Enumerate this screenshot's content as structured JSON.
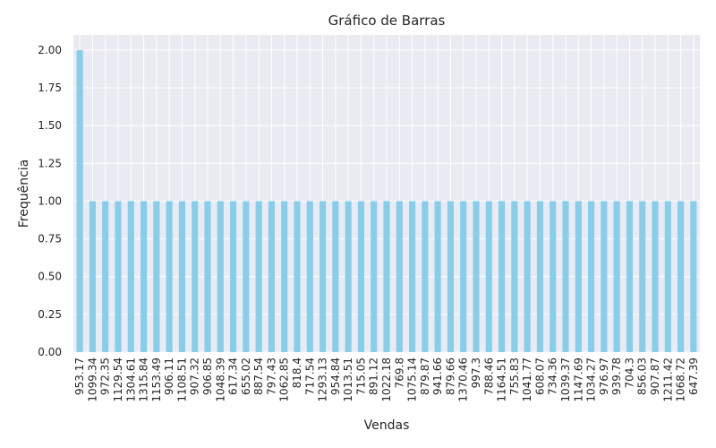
{
  "chart_data": {
    "type": "bar",
    "title": "Gráfico de Barras",
    "xlabel": "Vendas",
    "ylabel": "Frequência",
    "ylim": [
      0,
      2.1
    ],
    "yticks": [
      "0.00",
      "0.25",
      "0.50",
      "0.75",
      "1.00",
      "1.25",
      "1.50",
      "1.75",
      "2.00"
    ],
    "grid": true,
    "bar_color": "#87CEEB",
    "background_color": "#EAEAF2",
    "grid_color": "#FFFFFF",
    "categories": [
      "953.17",
      "1099.34",
      "972.35",
      "1129.54",
      "1304.61",
      "1315.84",
      "1153.49",
      "906.11",
      "1108.51",
      "907.32",
      "906.85",
      "1048.39",
      "617.34",
      "655.02",
      "887.54",
      "797.43",
      "1062.85",
      "818.4",
      "717.54",
      "1293.13",
      "954.84",
      "1013.51",
      "715.05",
      "891.12",
      "1022.18",
      "769.8",
      "1075.14",
      "879.87",
      "941.66",
      "879.66",
      "1370.46",
      "997.3",
      "788.46",
      "1164.51",
      "755.83",
      "1041.77",
      "608.07",
      "734.36",
      "1039.37",
      "1147.69",
      "1034.27",
      "976.97",
      "939.78",
      "704.3",
      "856.03",
      "907.87",
      "1211.42",
      "1068.72",
      "647.39"
    ],
    "values": [
      2,
      1,
      1,
      1,
      1,
      1,
      1,
      1,
      1,
      1,
      1,
      1,
      1,
      1,
      1,
      1,
      1,
      1,
      1,
      1,
      1,
      1,
      1,
      1,
      1,
      1,
      1,
      1,
      1,
      1,
      1,
      1,
      1,
      1,
      1,
      1,
      1,
      1,
      1,
      1,
      1,
      1,
      1,
      1,
      1,
      1,
      1,
      1,
      1
    ]
  }
}
